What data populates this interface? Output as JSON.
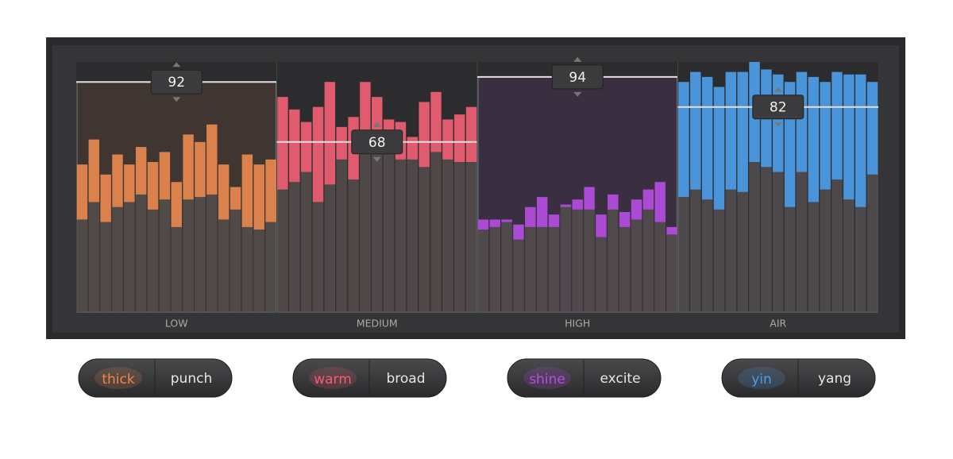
{
  "bands": [
    {
      "label": "LOW",
      "value": 92,
      "color": "#e8894e",
      "levels": [
        59,
        69,
        55,
        63,
        59,
        66,
        60,
        64,
        52,
        71,
        68,
        75,
        59,
        50,
        63,
        59,
        61
      ],
      "floors": [
        37,
        44,
        36,
        42,
        44,
        47,
        41,
        45,
        34,
        45,
        46,
        47,
        37,
        41,
        34,
        33,
        36
      ]
    },
    {
      "label": "MEDIUM",
      "value": 68,
      "color": "#ef5f73",
      "levels": [
        86,
        81,
        76,
        82,
        92,
        74,
        78,
        92,
        86,
        77,
        76,
        70,
        84,
        88,
        77,
        79,
        82
      ],
      "floors": [
        49,
        52,
        56,
        44,
        51,
        61,
        53,
        64,
        69,
        64,
        61,
        61,
        58,
        64,
        61,
        60,
        60
      ]
    },
    {
      "label": "HIGH",
      "value": 94,
      "color": "#b54ee0",
      "levels": [
        37,
        37,
        37,
        35,
        42,
        46,
        39,
        43,
        45,
        50,
        39,
        47,
        40,
        45,
        49,
        52,
        34
      ],
      "floors": [
        33,
        34,
        36,
        29,
        34,
        34,
        34,
        42,
        41,
        41,
        30,
        41,
        34,
        37,
        41,
        36,
        31
      ]
    },
    {
      "label": "AIR",
      "value": 82,
      "color": "#4d9de8",
      "levels": [
        92,
        96,
        94,
        90,
        96,
        96,
        100,
        97,
        95,
        92,
        96,
        94,
        92,
        96,
        95,
        95,
        92
      ],
      "floors": [
        46,
        49,
        45,
        41,
        49,
        48,
        60,
        58,
        56,
        42,
        56,
        44,
        49,
        53,
        45,
        42,
        55
      ]
    }
  ],
  "toggles": [
    {
      "on": "thick",
      "off": "punch"
    },
    {
      "on": "warm",
      "off": "broad"
    },
    {
      "on": "shine",
      "off": "excite"
    },
    {
      "on": "yin",
      "off": "yang"
    }
  ]
}
